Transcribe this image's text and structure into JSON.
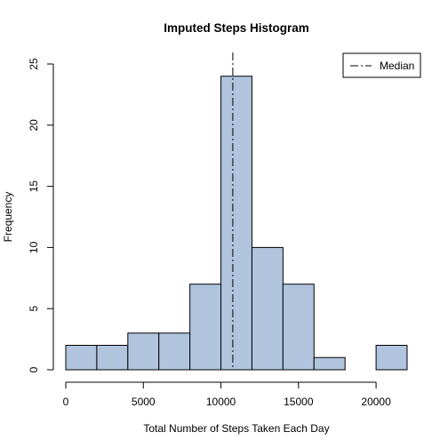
{
  "chart_data": {
    "type": "bar",
    "title": "Imputed Steps Histogram",
    "xlabel": "Total Number of Steps Taken Each Day",
    "ylabel": "Frequency",
    "bin_edges": [
      0,
      2000,
      4000,
      6000,
      8000,
      10000,
      12000,
      14000,
      16000,
      18000,
      20000,
      22000
    ],
    "counts": [
      2,
      2,
      3,
      3,
      7,
      24,
      10,
      7,
      1,
      0,
      2
    ],
    "xlim": [
      0,
      22000
    ],
    "ylim": [
      0,
      25
    ],
    "x_ticks": [
      0,
      5000,
      10000,
      15000,
      20000
    ],
    "y_ticks": [
      0,
      5,
      10,
      15,
      20,
      25
    ],
    "bar_color": "#b0c4de",
    "bar_edge_color": "#000000",
    "median": 10766,
    "median_line_style": "dashed",
    "legend": {
      "position": "top-right",
      "entries": [
        {
          "label": "Median",
          "line_style": "dashed"
        }
      ]
    },
    "grid": false
  }
}
